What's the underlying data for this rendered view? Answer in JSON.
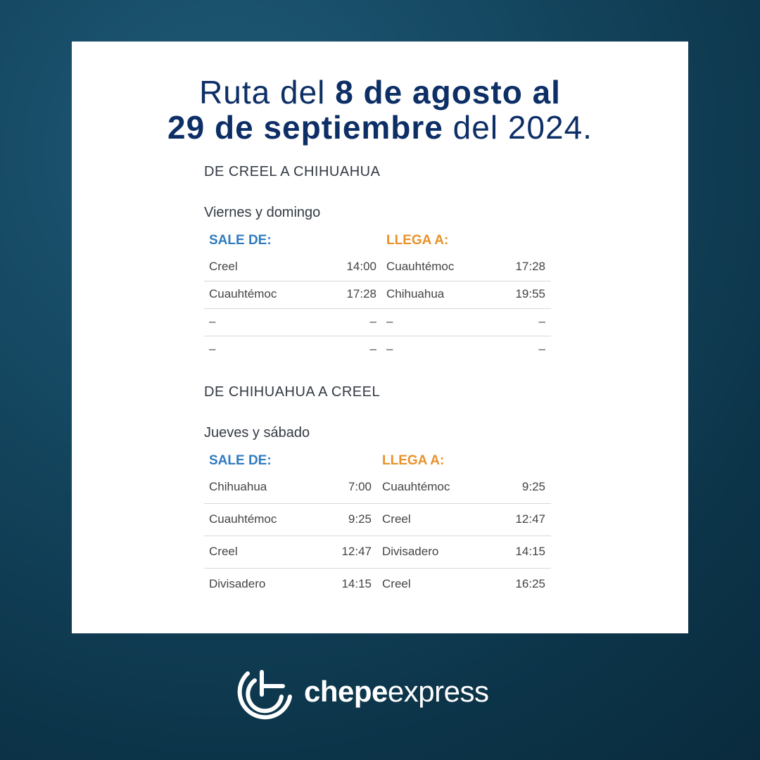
{
  "header": {
    "title_part1": "Ruta del ",
    "title_part2": "8 de agosto al",
    "title_part3": "29 de septiembre",
    "title_part4": " del 2024."
  },
  "sections": [
    {
      "heading": "DE CREEL A CHIHUAHUA",
      "days": "Viernes y domingo",
      "depart_label": "SALE DE:",
      "arrive_label": "LLEGA A:",
      "rows": [
        [
          "Creel",
          "14:00",
          "Cuauhtémoc",
          "17:28"
        ],
        [
          "Cuauhtémoc",
          "17:28",
          "Chihuahua",
          "19:55"
        ],
        [
          "–",
          "–",
          "–",
          "–"
        ],
        [
          "–",
          "–",
          "–",
          "–"
        ]
      ]
    },
    {
      "heading": "DE CHIHUAHUA A CREEL",
      "days": "Jueves y sábado",
      "depart_label": "SALE DE:",
      "arrive_label": "LLEGA A:",
      "rows": [
        [
          "Chihuahua",
          "7:00",
          "Cuauhtémoc",
          "9:25"
        ],
        [
          "Cuauhtémoc",
          "9:25",
          "Creel",
          "12:47"
        ],
        [
          "Creel",
          "12:47",
          "Divisadero",
          "14:15"
        ],
        [
          "Divisadero",
          "14:15",
          "Creel",
          "16:25"
        ]
      ]
    }
  ],
  "footer": {
    "brand_bold": "chepe",
    "brand_regular": "express"
  }
}
